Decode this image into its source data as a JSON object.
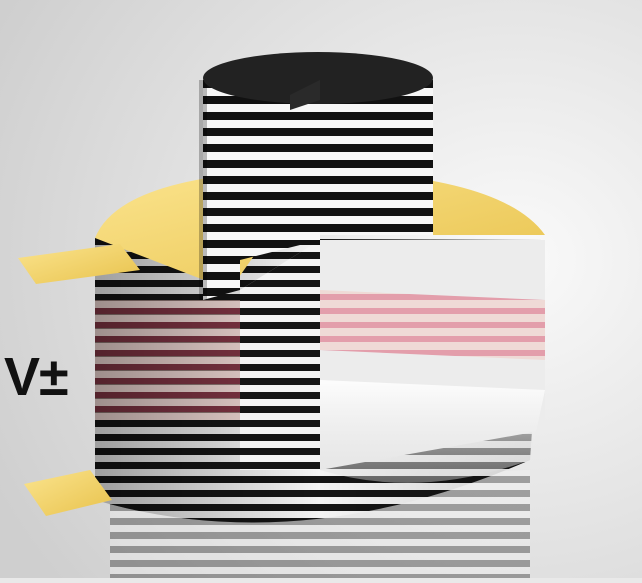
{
  "labels": {
    "voltage": "V±"
  },
  "colors": {
    "background": "#e9e9e9",
    "stripe_dark": "#111111",
    "stripe_light": "#f7f7f7",
    "electrode_gold": "#f5d76e",
    "active_layer": "#d9506a"
  }
}
